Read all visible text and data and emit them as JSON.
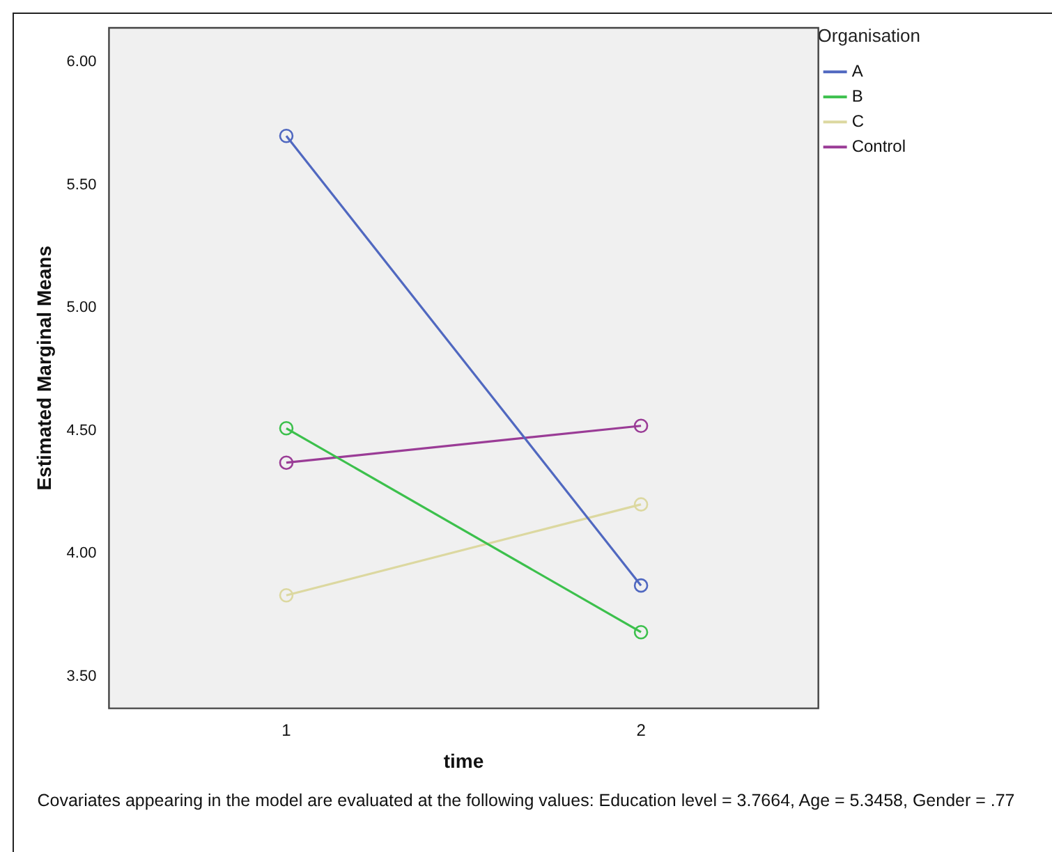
{
  "chart_data": {
    "type": "line",
    "xlabel": "time",
    "ylabel": "Estimated Marginal Means",
    "legend_title": "Organisation",
    "categories": [
      "1",
      "2"
    ],
    "series": [
      {
        "name": "A",
        "color": "#5068c0",
        "values": [
          5.7,
          3.87
        ]
      },
      {
        "name": "B",
        "color": "#3cc04c",
        "values": [
          4.51,
          3.68
        ]
      },
      {
        "name": "C",
        "color": "#dcd8a0",
        "values": [
          3.83,
          4.2
        ]
      },
      {
        "name": "Control",
        "color": "#9a3c96",
        "values": [
          4.37,
          4.52
        ]
      }
    ],
    "ylim": [
      3.37,
      6.14
    ],
    "yticks": [
      {
        "value": 3.5,
        "label": "3.50"
      },
      {
        "value": 4,
        "label": "4.00"
      },
      {
        "value": 4.5,
        "label": "4.50"
      },
      {
        "value": 5,
        "label": "5.00"
      },
      {
        "value": 5.5,
        "label": "5.50"
      },
      {
        "value": 6,
        "label": "6.00"
      }
    ],
    "grid": false,
    "legend": "top right",
    "marker": "circle",
    "line_style": "solid",
    "annotations": [
      "Covariates appearing in the model are evaluated at the following values: Education level = 3.7664, Age = 5.3458, Gender = .77"
    ]
  }
}
